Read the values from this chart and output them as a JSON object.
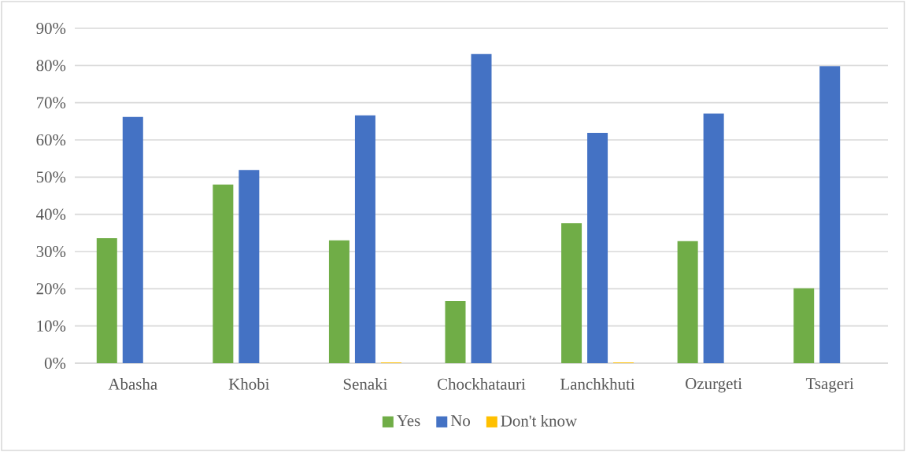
{
  "chart_data": {
    "type": "bar",
    "categories": [
      "Abasha",
      "Khobi",
      "Senaki",
      "Chockhatauri",
      "Lanchkhuti",
      "Ozurgeti",
      "Tsageri"
    ],
    "series": [
      {
        "name": "Yes",
        "color": "#70ad47",
        "values": [
          33.6,
          48.0,
          33.0,
          16.7,
          37.6,
          32.8,
          20.1
        ]
      },
      {
        "name": "No",
        "color": "#4472c4",
        "values": [
          66.2,
          51.9,
          66.6,
          83.1,
          61.9,
          67.1,
          79.8
        ]
      },
      {
        "name": "Don't know",
        "color": "#ffc000",
        "values": [
          0,
          0,
          0.2,
          0,
          0.2,
          0,
          0
        ]
      }
    ],
    "ylim": [
      0,
      90
    ],
    "yticks": [
      {
        "value": 0,
        "label": "0%"
      },
      {
        "value": 10,
        "label": "10%"
      },
      {
        "value": 20,
        "label": "20%"
      },
      {
        "value": 30,
        "label": "30%"
      },
      {
        "value": 40,
        "label": "40%"
      },
      {
        "value": 50,
        "label": "50%"
      },
      {
        "value": 60,
        "label": "60%"
      },
      {
        "value": 70,
        "label": "70%"
      },
      {
        "value": 80,
        "label": "80%"
      },
      {
        "value": 90,
        "label": "90%"
      }
    ],
    "grid": "y",
    "legend": "bottom"
  }
}
